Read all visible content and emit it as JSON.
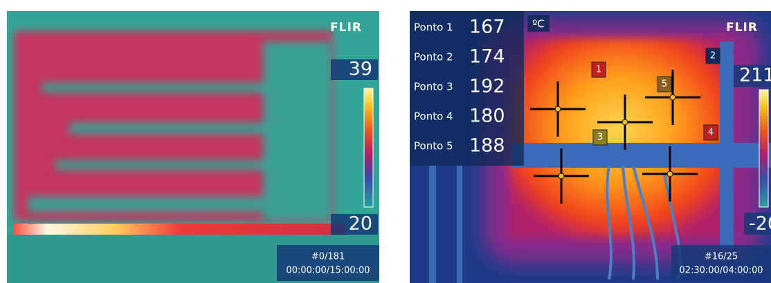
{
  "left": {
    "logo": "FLIR",
    "scale_max": 39,
    "scale_min": 20,
    "frame": "#0/181",
    "time": "00:00:00/15:00:00"
  },
  "right": {
    "unit": "ºC",
    "logo": "FLIR",
    "scale_max": 211,
    "scale_min": -20,
    "frame": "#16/25",
    "time": "02:30:00/04:00:00",
    "points": [
      {
        "label": "Ponto 1",
        "value": 167,
        "marker": "1"
      },
      {
        "label": "Ponto 2",
        "value": 174,
        "marker": "2"
      },
      {
        "label": "Ponto 3",
        "value": 192,
        "marker": "3"
      },
      {
        "label": "Ponto 4",
        "value": 180,
        "marker": "4"
      },
      {
        "label": "Ponto 5",
        "value": 188,
        "marker": "5"
      }
    ]
  }
}
